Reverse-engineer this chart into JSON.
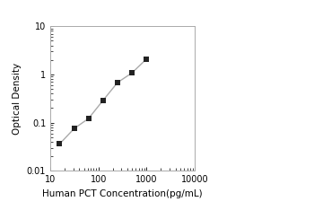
{
  "x_values": [
    15.6,
    31.2,
    62.5,
    125,
    250,
    500,
    1000
  ],
  "y_values": [
    0.036,
    0.075,
    0.122,
    0.29,
    0.68,
    1.08,
    2.1
  ],
  "line_color": "#aaaaaa",
  "marker_color": "#222222",
  "marker_style": "s",
  "marker_size": 4,
  "line_width": 1.0,
  "xlabel": "Human PCT Concentration(pg/mL)",
  "ylabel": "Optical Density",
  "xlim": [
    10,
    10000
  ],
  "ylim": [
    0.01,
    10
  ],
  "x_ticks": [
    10,
    100,
    1000,
    10000
  ],
  "y_ticks": [
    0.01,
    0.1,
    1,
    10
  ],
  "background_color": "#ffffff",
  "label_fontsize": 7.5,
  "tick_fontsize": 7.0
}
